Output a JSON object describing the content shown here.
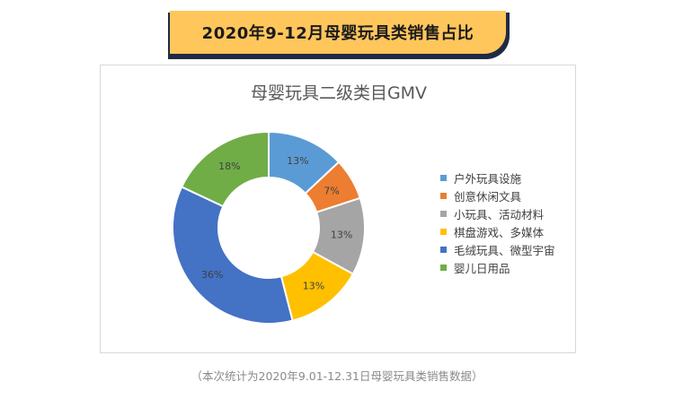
{
  "banner": {
    "title": "2020年9-12月母婴玩具类销售占比"
  },
  "chart_data": {
    "type": "pie",
    "variant": "donut",
    "title": "母婴玩具二级类目GMV",
    "categories": [
      "户外玩具设施",
      "创意休闲文具",
      "小玩具、活动材料",
      "棋盘游戏、多媒体",
      "毛绒玩具、微型宇宙",
      "婴儿日用品"
    ],
    "values": [
      13,
      7,
      13,
      13,
      36,
      18
    ],
    "labels": [
      "13%",
      "7%",
      "13%",
      "13%",
      "36%",
      "18%"
    ],
    "colors": [
      "#5b9bd5",
      "#ed7d31",
      "#a5a5a5",
      "#ffc000",
      "#4472c4",
      "#70ad47"
    ],
    "legend_position": "right"
  },
  "footnote": "（本次统计为2020年9.01-12.31日母婴玩具类销售数据）"
}
